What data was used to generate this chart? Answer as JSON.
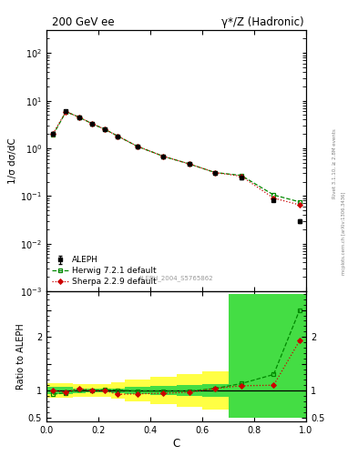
{
  "title_left": "200 GeV ee",
  "title_right": "γ*/Z (Hadronic)",
  "ylabel_main": "1/σ dσ/dC",
  "ylabel_ratio": "Ratio to ALEPH",
  "xlabel": "C",
  "watermark": "ALEPH_2004_S5765862",
  "right_label": "Rivet 3.1.10, ≥ 2.8M events",
  "right_label2": "mcplots.cern.ch [arXiv:1306.3436]",
  "aleph_x": [
    0.025,
    0.075,
    0.125,
    0.175,
    0.225,
    0.275,
    0.35,
    0.45,
    0.55,
    0.65,
    0.75,
    0.875,
    0.975
  ],
  "aleph_y": [
    2.05,
    6.0,
    4.5,
    3.3,
    2.5,
    1.8,
    1.1,
    0.68,
    0.47,
    0.3,
    0.24,
    0.082,
    0.03
  ],
  "aleph_yerr": [
    0.12,
    0.2,
    0.18,
    0.13,
    0.09,
    0.07,
    0.04,
    0.025,
    0.018,
    0.012,
    0.012,
    0.005,
    0.003
  ],
  "herwig_x": [
    0.025,
    0.075,
    0.125,
    0.175,
    0.225,
    0.275,
    0.35,
    0.45,
    0.55,
    0.65,
    0.75,
    0.875,
    0.975
  ],
  "herwig_y": [
    1.9,
    5.9,
    4.5,
    3.3,
    2.5,
    1.8,
    1.1,
    0.68,
    0.47,
    0.31,
    0.27,
    0.105,
    0.075
  ],
  "sherpa_x": [
    0.025,
    0.075,
    0.125,
    0.175,
    0.225,
    0.275,
    0.35,
    0.45,
    0.55,
    0.65,
    0.75,
    0.875,
    0.975
  ],
  "sherpa_y": [
    2.05,
    5.9,
    4.5,
    3.3,
    2.5,
    1.8,
    1.1,
    0.68,
    0.47,
    0.31,
    0.26,
    0.09,
    0.065
  ],
  "herwig_ratio_x": [
    0.025,
    0.075,
    0.125,
    0.175,
    0.225,
    0.275,
    0.35,
    0.45,
    0.55,
    0.65,
    0.75,
    0.875,
    0.975
  ],
  "herwig_ratio_y": [
    0.93,
    0.96,
    1.02,
    1.0,
    1.02,
    1.01,
    0.99,
    0.99,
    0.99,
    1.04,
    1.13,
    1.3,
    2.5
  ],
  "sherpa_ratio_x": [
    0.025,
    0.075,
    0.125,
    0.175,
    0.225,
    0.275,
    0.35,
    0.45,
    0.55,
    0.65,
    0.75,
    0.875,
    0.975
  ],
  "sherpa_ratio_y": [
    1.0,
    0.97,
    1.04,
    1.0,
    1.0,
    0.93,
    0.94,
    0.95,
    0.97,
    1.04,
    1.09,
    1.1,
    1.93
  ],
  "bin_edges": [
    0.0,
    0.05,
    0.1,
    0.15,
    0.2,
    0.25,
    0.3,
    0.4,
    0.5,
    0.6,
    0.7,
    0.8,
    0.9,
    1.0
  ],
  "yellow_lo": [
    0.86,
    0.86,
    0.88,
    0.88,
    0.88,
    0.85,
    0.8,
    0.75,
    0.7,
    0.65,
    0.6,
    0.6,
    0.6
  ],
  "yellow_hi": [
    1.14,
    1.14,
    1.12,
    1.12,
    1.12,
    1.15,
    1.2,
    1.25,
    1.3,
    1.35,
    2.8,
    2.8,
    2.8
  ],
  "green_lo": [
    0.93,
    0.93,
    0.96,
    0.97,
    0.97,
    0.96,
    0.93,
    0.91,
    0.9,
    0.88,
    0.5,
    0.5,
    0.5
  ],
  "green_hi": [
    1.07,
    1.07,
    1.04,
    1.03,
    1.03,
    1.04,
    1.07,
    1.09,
    1.1,
    1.12,
    2.8,
    2.8,
    2.8
  ],
  "herwig_color": "#008800",
  "sherpa_color": "#cc0000",
  "aleph_color": "#000000",
  "yellow_color": "#ffff44",
  "green_color": "#44dd44",
  "ylim_main": [
    0.001,
    300
  ],
  "ylim_ratio": [
    0.42,
    2.85
  ],
  "xlim": [
    0.0,
    1.0
  ]
}
